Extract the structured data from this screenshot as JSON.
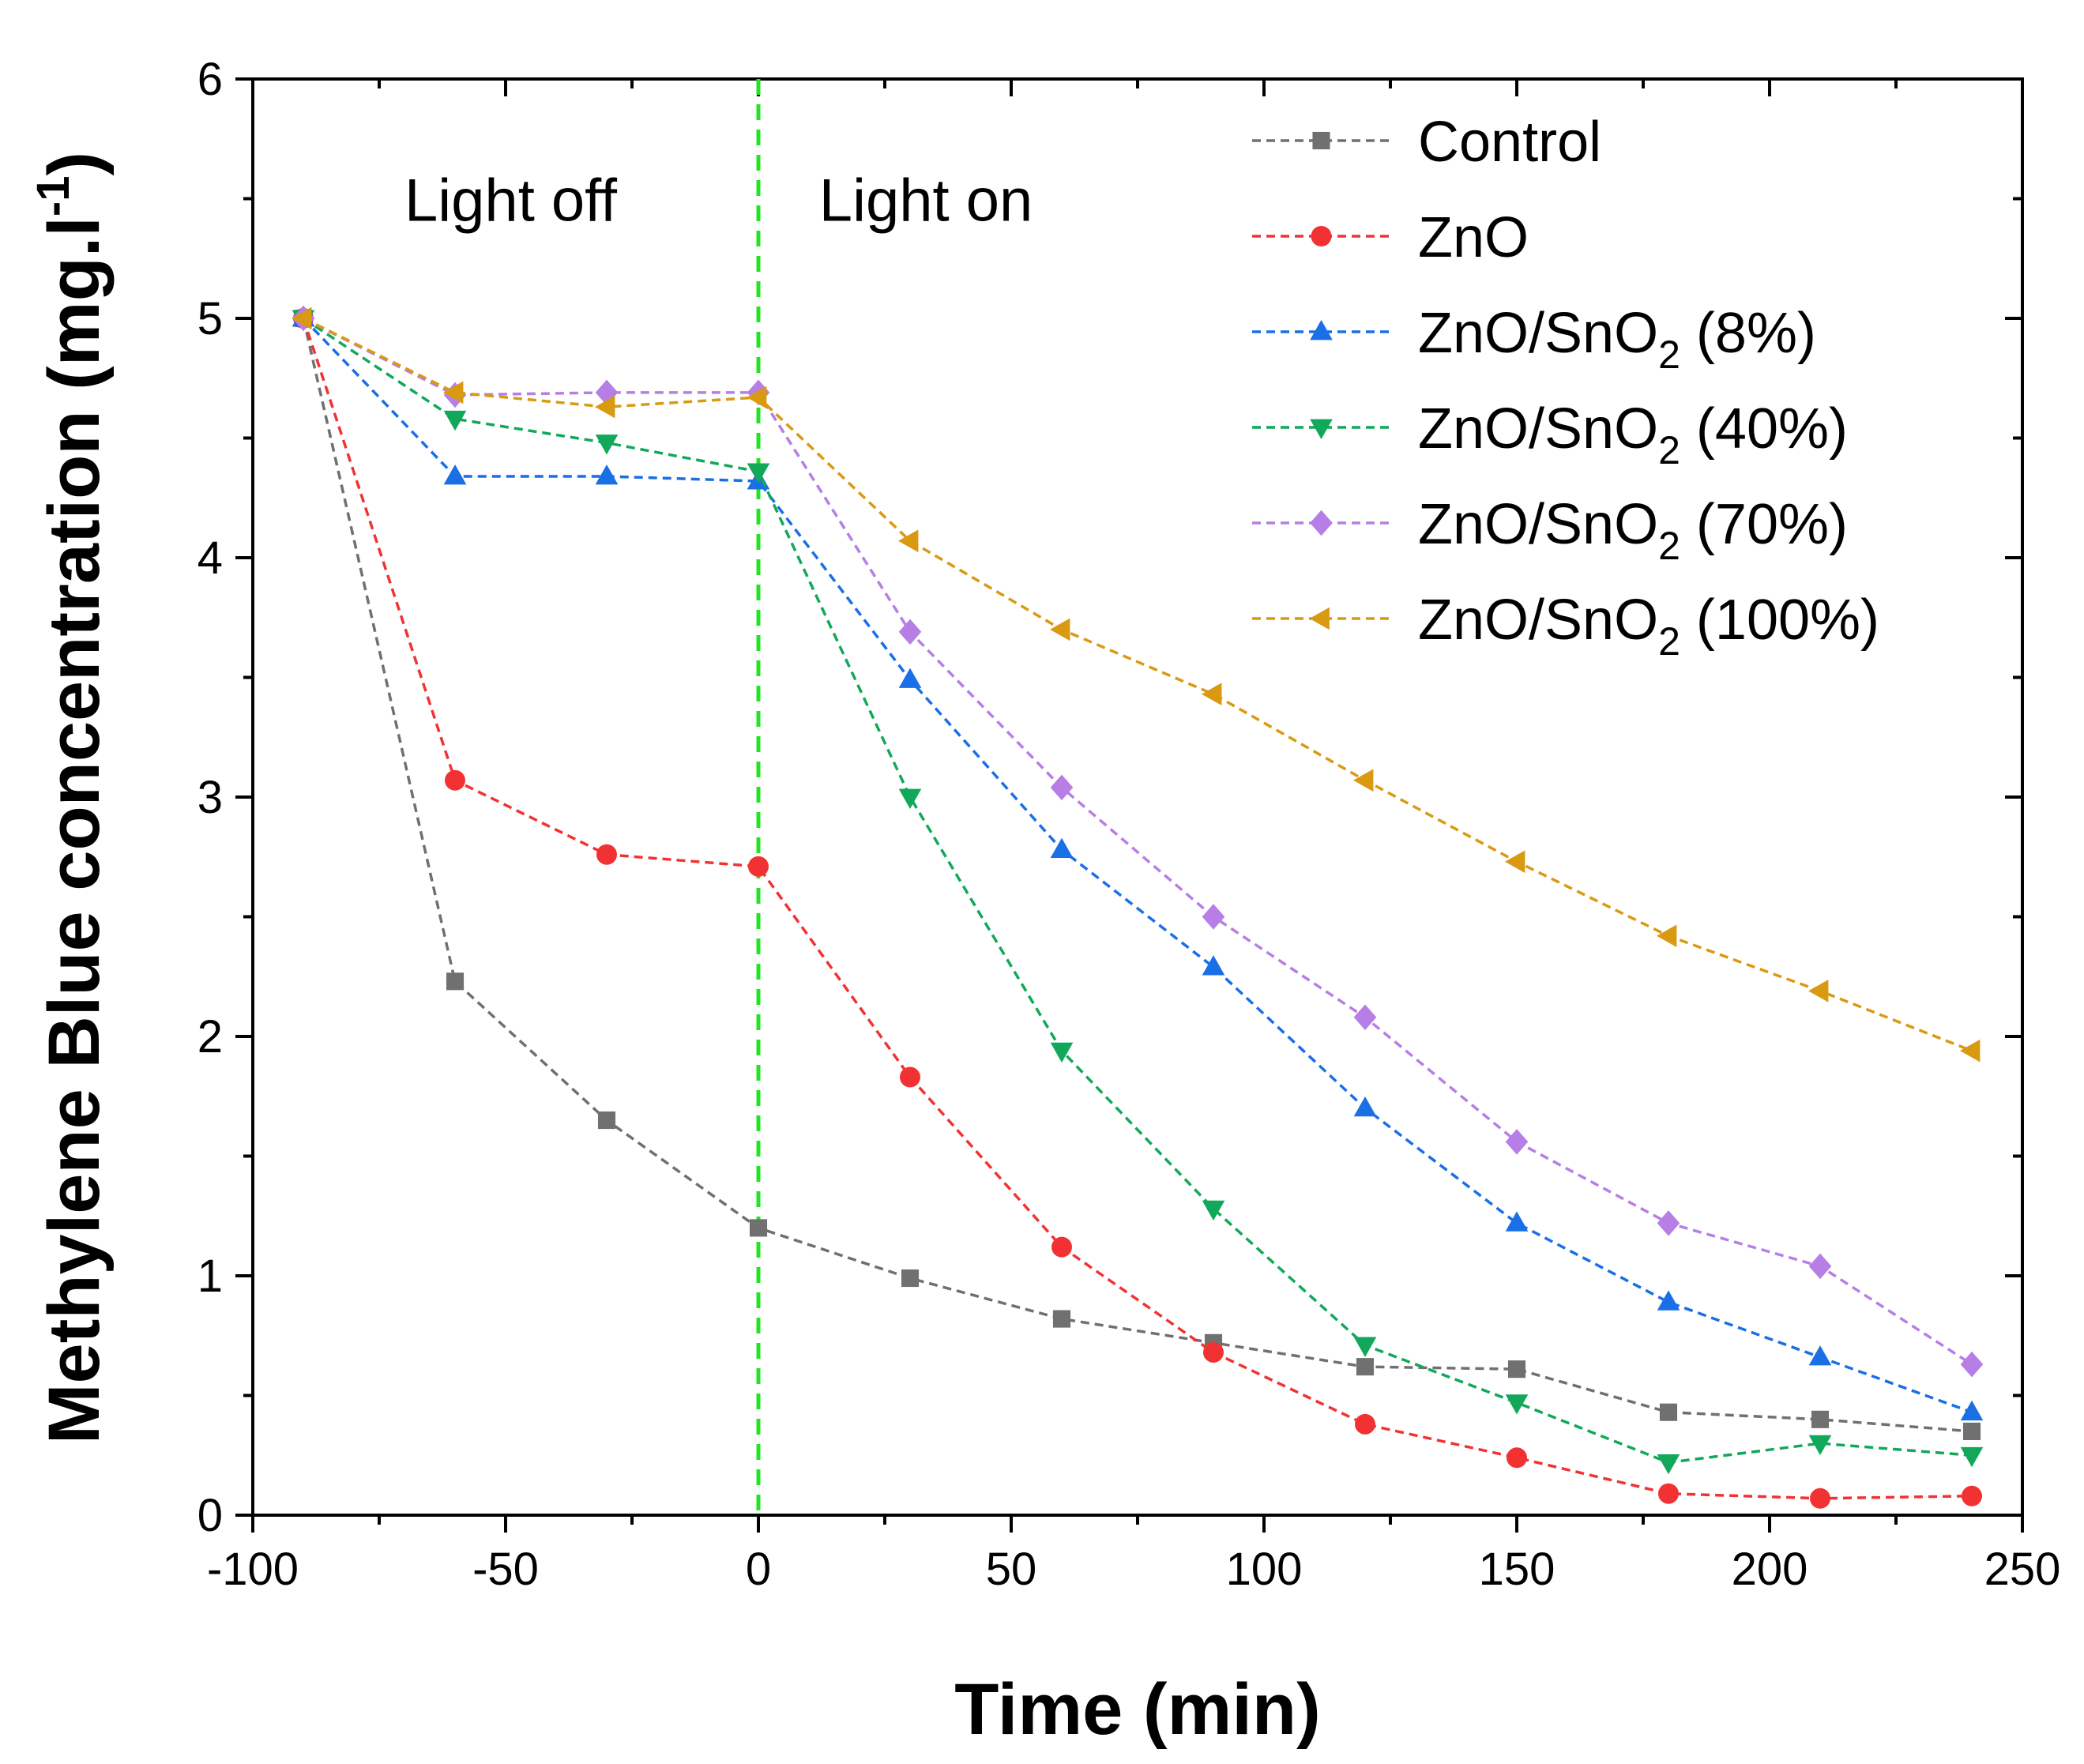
{
  "chart_data": {
    "type": "line",
    "title": "",
    "xlabel": "Time (min)",
    "ylabel": "Methylene Blue concentration (mg.l",
    "ylabel_sup": "-1",
    "ylabel_close": ")",
    "xlim": [
      -100,
      250
    ],
    "ylim": [
      0,
      6
    ],
    "x_ticks": [
      -100,
      -50,
      0,
      50,
      100,
      150,
      200,
      250
    ],
    "y_ticks": [
      0,
      1,
      2,
      3,
      4,
      5,
      6
    ],
    "x_tick_labels": [
      "-100",
      "-50",
      "0",
      "50",
      "100",
      "150",
      "200",
      "250"
    ],
    "y_tick_labels": [
      "0",
      "1",
      "2",
      "3",
      "4",
      "5",
      "6"
    ],
    "grid": false,
    "legend_position": "top-right",
    "x": [
      -90,
      -60,
      -30,
      0,
      30,
      60,
      90,
      120,
      150,
      180,
      210,
      240
    ],
    "vline": {
      "x": 0,
      "color": "#22e422"
    },
    "annotations": [
      {
        "text": "Light off",
        "x": -70,
        "y": 5.5
      },
      {
        "text": "Light on",
        "x": 12,
        "y": 5.5
      }
    ],
    "series": [
      {
        "name": "Control",
        "name_main": "Control",
        "name_sub": "",
        "name_tail": "",
        "color": "#707070",
        "marker": "square",
        "values": [
          5.0,
          2.23,
          1.65,
          1.2,
          0.99,
          0.82,
          0.72,
          0.62,
          0.61,
          0.43,
          0.4,
          0.35
        ]
      },
      {
        "name": "ZnO",
        "name_main": "ZnO",
        "name_sub": "",
        "name_tail": "",
        "color": "#f23232",
        "marker": "circle",
        "values": [
          5.0,
          3.07,
          2.76,
          2.71,
          1.83,
          1.12,
          0.68,
          0.38,
          0.24,
          0.09,
          0.07,
          0.08
        ]
      },
      {
        "name": "ZnO/SnO2 (8%)",
        "name_main": "ZnO/SnO",
        "name_sub": "2",
        "name_tail": " (8%)",
        "color": "#1a6ee6",
        "marker": "triangle-up",
        "values": [
          5.0,
          4.34,
          4.34,
          4.32,
          3.49,
          2.78,
          2.29,
          1.7,
          1.22,
          0.89,
          0.66,
          0.43
        ]
      },
      {
        "name": "ZnO/SnO2 (40%)",
        "name_main": "ZnO/SnO",
        "name_sub": "2",
        "name_tail": " (40%)",
        "color": "#12a85a",
        "marker": "triangle-down",
        "values": [
          5.0,
          4.58,
          4.48,
          4.36,
          3.0,
          1.94,
          1.28,
          0.71,
          0.47,
          0.22,
          0.3,
          0.25
        ]
      },
      {
        "name": "ZnO/SnO2 (70%)",
        "name_main": "ZnO/SnO",
        "name_sub": "2",
        "name_tail": " (70%)",
        "color": "#b77ee6",
        "marker": "diamond",
        "values": [
          5.0,
          4.68,
          4.69,
          4.69,
          3.69,
          3.04,
          2.5,
          2.08,
          1.56,
          1.22,
          1.04,
          0.63
        ]
      },
      {
        "name": "ZnO/SnO2 (100%)",
        "name_main": "ZnO/SnO",
        "name_sub": "2",
        "name_tail": " (100%)",
        "color": "#d99a12",
        "marker": "triangle-left",
        "values": [
          5.0,
          4.69,
          4.63,
          4.67,
          4.07,
          3.7,
          3.43,
          3.07,
          2.73,
          2.42,
          2.19,
          1.94
        ]
      }
    ]
  }
}
